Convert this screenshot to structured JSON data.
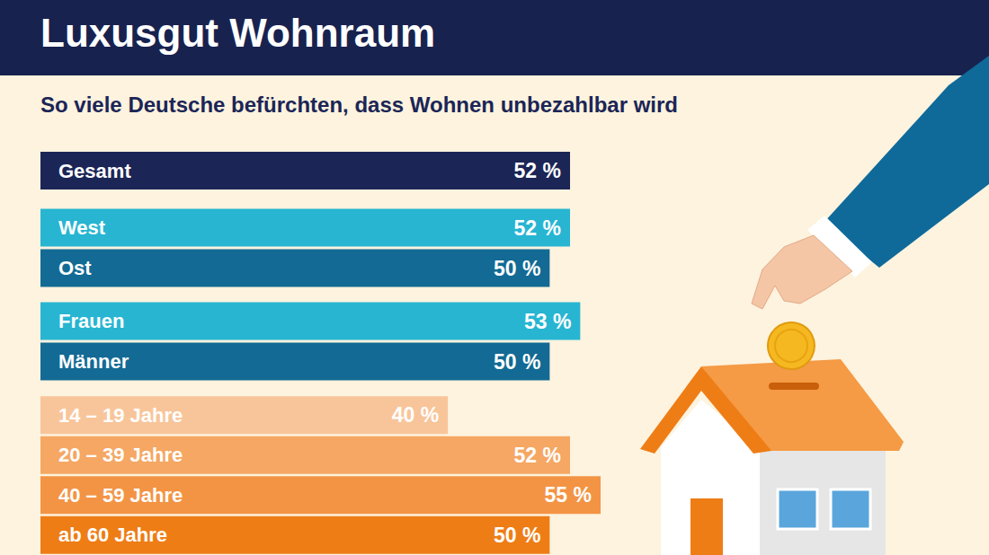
{
  "title": "Luxusgut Wohnraum",
  "subtitle": "So viele Deutsche befürchten, dass Wohnen unbezahlbar wird",
  "chart_data": [
    {
      "type": "bar",
      "orientation": "horizontal",
      "categories": [
        "Gesamt"
      ],
      "values": [
        52
      ],
      "value_labels": [
        "52 %"
      ],
      "colors": [
        "#1b2556"
      ],
      "xlim": [
        0,
        55
      ],
      "tick_labels": "y",
      "data_labels": true
    },
    {
      "type": "bar",
      "orientation": "horizontal",
      "categories": [
        "West",
        "Ost"
      ],
      "values": [
        52,
        50
      ],
      "value_labels": [
        "52 %",
        "50 %"
      ],
      "colors": [
        "#27b5d2",
        "#136a94"
      ],
      "xlim": [
        0,
        55
      ],
      "tick_labels": "y",
      "data_labels": true
    },
    {
      "type": "bar",
      "orientation": "horizontal",
      "categories": [
        "Frauen",
        "Männer"
      ],
      "values": [
        53,
        50
      ],
      "value_labels": [
        "53 %",
        "50 %"
      ],
      "colors": [
        "#27b5d2",
        "#136a94"
      ],
      "xlim": [
        0,
        55
      ],
      "tick_labels": "y",
      "data_labels": true
    },
    {
      "type": "bar",
      "orientation": "horizontal",
      "categories": [
        "14 – 19 Jahre",
        "20 – 39 Jahre",
        "40 – 59 Jahre",
        "ab 60 Jahre"
      ],
      "values": [
        40,
        52,
        55,
        50
      ],
      "value_labels": [
        "40 %",
        "52 %",
        "55 %",
        "50 %"
      ],
      "colors": [
        "#f8c59a",
        "#f5a763",
        "#f39445",
        "#ee7d16"
      ],
      "xlim": [
        0,
        55
      ],
      "tick_labels": "y",
      "data_labels": true
    }
  ]
}
